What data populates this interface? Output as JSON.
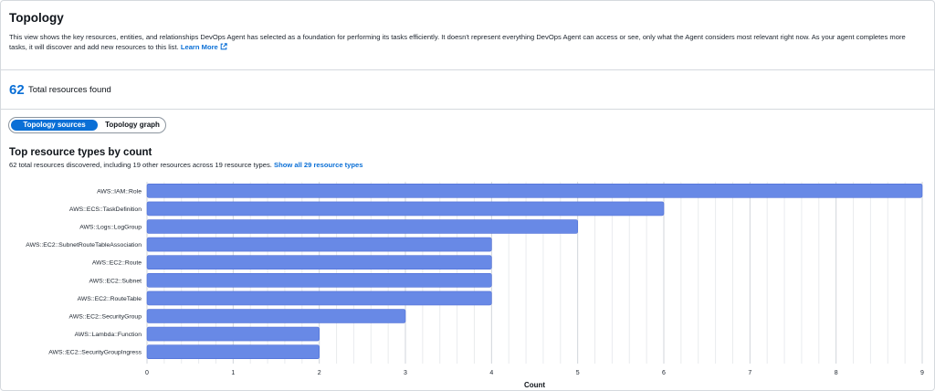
{
  "header": {
    "title": "Topology",
    "description": "This view shows the key resources, entities, and relationships DevOps Agent has selected as a foundation for performing its tasks efficiently. It doesn't represent everything DevOps Agent can access or see, only what the Agent considers most relevant right now. As your agent completes more tasks, it will discover and add new resources to this list.",
    "learn_more": "Learn More",
    "learn_more_icon": "external-link-icon"
  },
  "summary": {
    "count": "62",
    "label": "Total resources found"
  },
  "segmented": {
    "active": "Topology sources",
    "inactive": "Topology graph"
  },
  "section": {
    "title": "Top resource types by count",
    "subtitle": "62 total resources discovered, including 19 other resources across 19 resource types.",
    "show_all": "Show all 29 resource types"
  },
  "colors": {
    "accent": "#0a6fd6",
    "bar": "#6889e6",
    "border": "#d5d9de"
  },
  "chart_data": {
    "type": "bar",
    "orientation": "horizontal",
    "categories": [
      "AWS::IAM::Role",
      "AWS::ECS::TaskDefinition",
      "AWS::Logs::LogGroup",
      "AWS::EC2::SubnetRouteTableAssociation",
      "AWS::EC2::Route",
      "AWS::EC2::Subnet",
      "AWS::EC2::RouteTable",
      "AWS::EC2::SecurityGroup",
      "AWS::Lambda::Function",
      "AWS::EC2::SecurityGroupIngress"
    ],
    "values": [
      9,
      6,
      5,
      4,
      4,
      4,
      4,
      3,
      2,
      2
    ],
    "xlabel": "Count",
    "ylabel": "",
    "xlim": [
      0,
      9
    ],
    "xticks": [
      0,
      1,
      2,
      3,
      4,
      5,
      6,
      7,
      8,
      9
    ],
    "grid": true
  }
}
